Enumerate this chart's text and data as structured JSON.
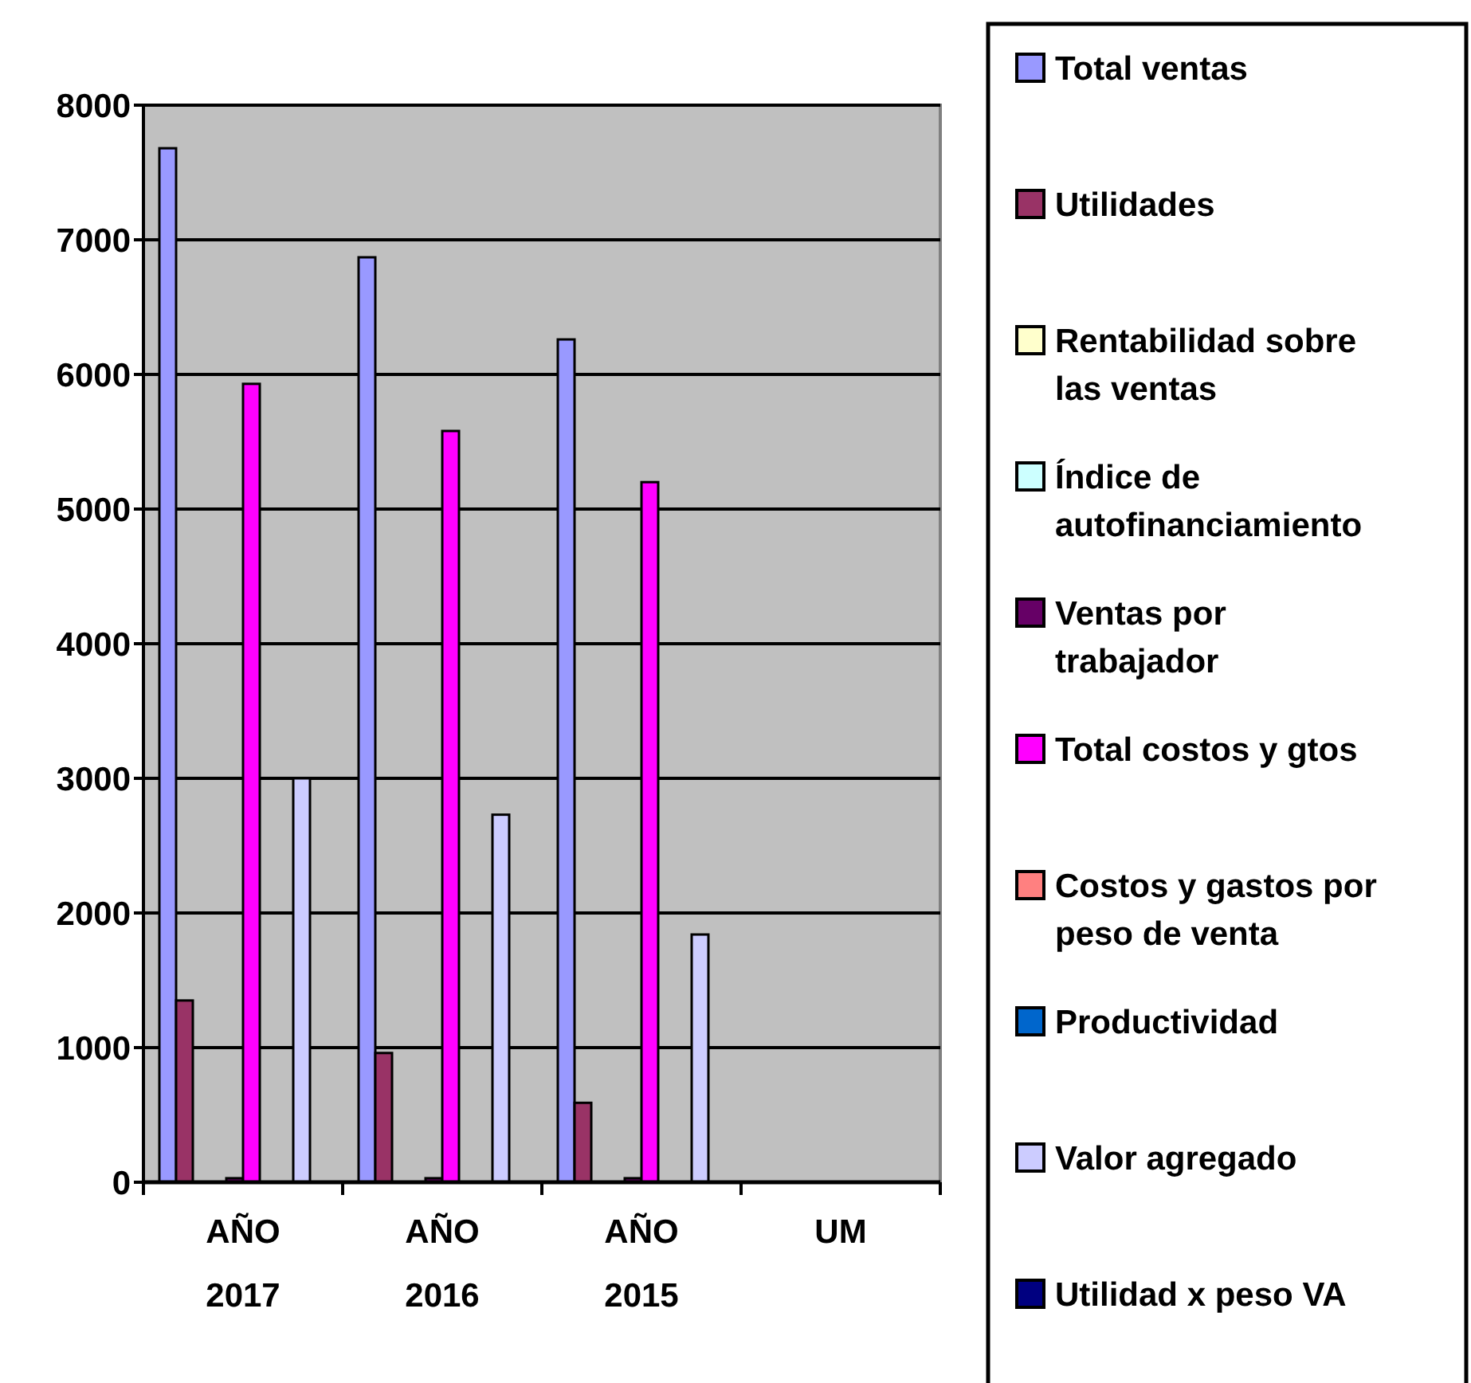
{
  "chart_data": {
    "type": "bar",
    "categories": [
      "AÑO 2017",
      "AÑO 2016",
      "AÑO 2015",
      "UM"
    ],
    "series": [
      {
        "name": "Total ventas",
        "color": "#9999ff",
        "values": [
          7680,
          6870,
          6260,
          null
        ]
      },
      {
        "name": "Utilidades",
        "color": "#993366",
        "values": [
          1350,
          960,
          590,
          null
        ]
      },
      {
        "name": "Rentabilidad sobre las ventas",
        "color": "#ffffcc",
        "values": [
          0,
          0,
          0,
          null
        ]
      },
      {
        "name": "Índice de autofinanciamiento",
        "color": "#ccffff",
        "values": [
          0,
          0,
          0,
          null
        ]
      },
      {
        "name": "Ventas por trabajador",
        "color": "#660066",
        "values": [
          30,
          30,
          30,
          null
        ]
      },
      {
        "name": "Total costos y gtos",
        "color": "#ff00ff",
        "values": [
          5930,
          5580,
          5200,
          null
        ]
      },
      {
        "name": "Costos y gastos por peso de venta",
        "color": "#ff8080",
        "values": [
          0,
          0,
          0,
          null
        ]
      },
      {
        "name": "Productividad",
        "color": "#0066cc",
        "values": [
          null,
          null,
          null,
          null
        ]
      },
      {
        "name": "Valor agregado",
        "color": "#ccccff",
        "values": [
          3000,
          2730,
          1840,
          null
        ]
      },
      {
        "name": "Utilidad x peso VA",
        "color": "#000080",
        "values": [
          0,
          0,
          0,
          null
        ]
      }
    ],
    "ylim": [
      0,
      8000
    ],
    "yticks": [
      0,
      1000,
      2000,
      3000,
      4000,
      5000,
      6000,
      7000,
      8000
    ],
    "grid": "y",
    "legend": "right"
  }
}
